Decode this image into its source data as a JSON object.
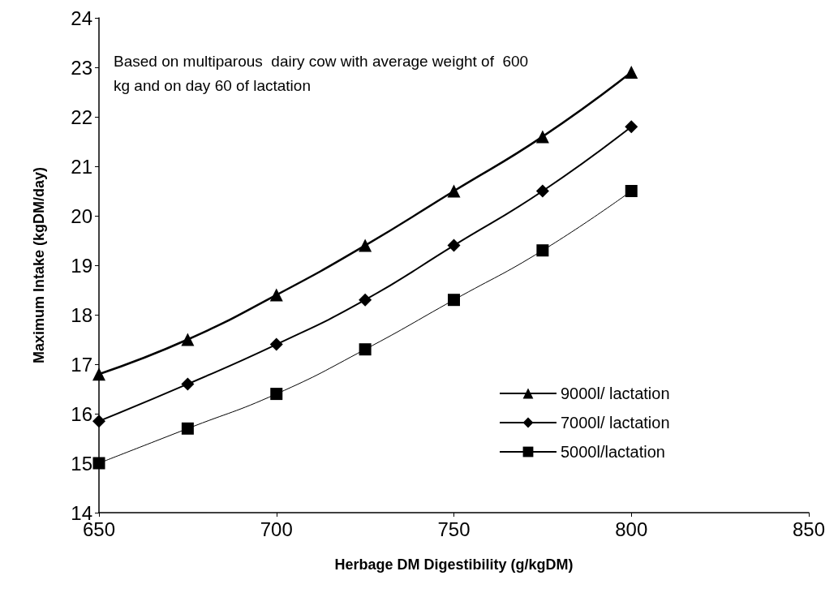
{
  "chart_data": {
    "type": "line",
    "xlabel": "Herbage DM Digestibility (g/kgDM)",
    "ylabel": "Maximum Intake (kgDM/day)",
    "annotations": [
      "Based on multiparous  dairy cow with average weight of  600\nkg and on day 60 of lactation"
    ],
    "x": [
      650,
      675,
      700,
      725,
      750,
      775,
      800
    ],
    "series": [
      {
        "name": "9000l/ lactation",
        "color": "#000000",
        "marker": "triangle",
        "values": [
          16.8,
          17.5,
          18.4,
          19.4,
          20.5,
          21.6,
          22.9
        ]
      },
      {
        "name": "7000l/ lactation",
        "color": "#000000",
        "marker": "diamond",
        "values": [
          15.85,
          16.6,
          17.4,
          18.3,
          19.4,
          20.5,
          21.8
        ]
      },
      {
        "name": "5000l/lactation",
        "color": "#000000",
        "marker": "square",
        "values": [
          15.0,
          15.7,
          16.4,
          17.3,
          18.3,
          19.3,
          20.5
        ]
      }
    ],
    "xlim": [
      650,
      850
    ],
    "xticks": [
      650,
      700,
      750,
      800,
      850
    ],
    "ylim": [
      14,
      24
    ],
    "yticks": [
      14,
      15,
      16,
      17,
      18,
      19,
      20,
      21,
      22,
      23,
      24
    ],
    "grid": false,
    "legend": "bottom right"
  }
}
